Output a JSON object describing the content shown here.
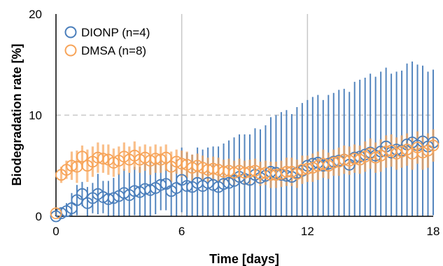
{
  "chart_data": {
    "type": "scatter",
    "xlabel": "Time [days]",
    "ylabel": "Biodegradation rate [%]",
    "xlim": [
      0,
      18
    ],
    "ylim": [
      0,
      20
    ],
    "xticks": [
      "0",
      "6",
      "12",
      "18"
    ],
    "yticks": [
      "0",
      "10",
      "20"
    ],
    "grid": {
      "vertical_solid_at": [
        6,
        12
      ],
      "horizontal_dashed_at": [
        10
      ]
    },
    "legend_position": "top-left",
    "marker": "open-circle",
    "error_bars": "vertical",
    "series": [
      {
        "name": "DIONP (n=4)",
        "color": "#4a7ebb",
        "x": [
          0,
          0.25,
          0.5,
          0.75,
          1.0,
          1.25,
          1.5,
          1.75,
          2.0,
          2.25,
          2.5,
          2.75,
          3.0,
          3.25,
          3.5,
          3.75,
          4.0,
          4.25,
          4.5,
          4.75,
          5.0,
          5.25,
          5.5,
          5.75,
          6.0,
          6.25,
          6.5,
          6.75,
          7.0,
          7.25,
          7.5,
          7.75,
          8.0,
          8.25,
          8.5,
          8.75,
          9.0,
          9.25,
          9.5,
          9.75,
          10.0,
          10.25,
          10.5,
          10.75,
          11.0,
          11.25,
          11.5,
          11.75,
          12.0,
          12.25,
          12.5,
          12.75,
          13.0,
          13.25,
          13.5,
          13.75,
          14.0,
          14.25,
          14.5,
          14.75,
          15.0,
          15.25,
          15.5,
          15.75,
          16.0,
          16.25,
          16.5,
          16.75,
          17.0,
          17.25,
          17.5,
          17.75,
          18.0
        ],
        "y": [
          0.0,
          0.3,
          0.5,
          0.8,
          1.6,
          2.2,
          1.3,
          1.8,
          2.2,
          1.9,
          1.7,
          1.8,
          2.0,
          2.3,
          2.1,
          2.5,
          2.4,
          2.7,
          2.6,
          2.8,
          3.1,
          3.2,
          2.5,
          2.8,
          3.6,
          3.0,
          2.9,
          3.3,
          3.0,
          3.3,
          3.1,
          2.9,
          3.2,
          3.3,
          3.5,
          3.9,
          3.7,
          3.6,
          4.1,
          3.8,
          4.0,
          4.4,
          4.3,
          4.1,
          4.0,
          3.9,
          4.3,
          4.5,
          5.0,
          5.2,
          5.3,
          5.0,
          5.2,
          5.4,
          5.5,
          5.6,
          5.1,
          5.8,
          5.9,
          6.1,
          6.3,
          6.0,
          6.4,
          6.9,
          6.3,
          6.6,
          6.5,
          7.1,
          7.3,
          7.0,
          7.4,
          6.9,
          7.3
        ],
        "err": [
          0.1,
          0.6,
          0.8,
          1.5,
          1.5,
          1.2,
          1.6,
          1.5,
          2.0,
          1.6,
          1.8,
          2.0,
          2.2,
          2.4,
          2.2,
          2.4,
          2.5,
          2.7,
          2.8,
          2.6,
          2.5,
          2.6,
          3.0,
          2.8,
          3.2,
          3.3,
          3.2,
          3.5,
          3.6,
          3.5,
          3.8,
          4.0,
          4.0,
          4.2,
          4.3,
          4.2,
          4.4,
          4.5,
          4.6,
          4.8,
          5.0,
          5.4,
          5.7,
          6.2,
          6.5,
          6.2,
          6.5,
          6.7,
          6.5,
          6.6,
          6.7,
          6.5,
          6.8,
          6.8,
          7.0,
          7.0,
          7.2,
          7.5,
          7.6,
          7.6,
          7.8,
          7.8,
          7.9,
          7.8,
          7.8,
          7.7,
          7.9,
          8.0,
          8.0,
          8.0,
          7.5,
          7.4,
          7.2
        ]
      },
      {
        "name": "DMSA (n=8)",
        "color": "#f7a459",
        "x": [
          0,
          0.25,
          0.5,
          0.75,
          1.0,
          1.25,
          1.5,
          1.75,
          2.0,
          2.25,
          2.5,
          2.75,
          3.0,
          3.25,
          3.5,
          3.75,
          4.0,
          4.25,
          4.5,
          4.75,
          5.0,
          5.25,
          5.5,
          5.75,
          6.0,
          6.25,
          6.5,
          6.75,
          7.0,
          7.25,
          7.5,
          7.75,
          8.0,
          8.25,
          8.5,
          8.75,
          9.0,
          9.25,
          9.5,
          9.75,
          10.0,
          10.25,
          10.5,
          10.75,
          11.0,
          11.25,
          11.5,
          11.75,
          12.0,
          12.25,
          12.5,
          12.75,
          13.0,
          13.25,
          13.5,
          13.75,
          14.0,
          14.25,
          14.5,
          14.75,
          15.0,
          15.25,
          15.5,
          15.75,
          16.0,
          16.25,
          16.5,
          16.75,
          17.0,
          17.25,
          17.5,
          17.75,
          18.0
        ],
        "y": [
          0.3,
          4.1,
          4.6,
          5.0,
          4.9,
          5.9,
          5.0,
          5.4,
          5.8,
          5.7,
          5.6,
          5.3,
          5.5,
          5.9,
          5.6,
          6.0,
          5.6,
          5.8,
          5.5,
          5.7,
          5.6,
          5.8,
          4.9,
          5.4,
          5.2,
          5.1,
          4.8,
          5.0,
          4.8,
          4.6,
          4.7,
          4.6,
          4.4,
          4.5,
          4.3,
          4.5,
          4.3,
          4.4,
          4.5,
          4.2,
          4.3,
          4.1,
          4.1,
          4.2,
          4.4,
          4.4,
          4.2,
          4.6,
          4.7,
          4.8,
          5.0,
          5.2,
          5.0,
          5.3,
          5.4,
          5.6,
          5.5,
          5.7,
          5.6,
          5.9,
          6.2,
          5.8,
          6.0,
          6.4,
          6.5,
          6.2,
          6.4,
          6.6,
          6.2,
          6.8,
          6.3,
          6.5,
          7.0
        ],
        "err": [
          0.4,
          0.8,
          0.9,
          1.4,
          1.6,
          1.1,
          1.6,
          1.5,
          1.5,
          1.4,
          1.5,
          1.4,
          1.4,
          1.4,
          1.3,
          1.4,
          1.3,
          1.3,
          1.4,
          1.4,
          1.3,
          1.3,
          1.5,
          1.2,
          1.3,
          1.3,
          1.3,
          1.2,
          1.2,
          1.2,
          1.2,
          1.2,
          1.2,
          1.2,
          1.2,
          1.2,
          1.2,
          1.2,
          1.2,
          1.2,
          1.2,
          1.3,
          1.3,
          1.3,
          1.4,
          1.4,
          1.4,
          1.4,
          1.3,
          1.4,
          1.4,
          1.4,
          1.3,
          1.3,
          1.4,
          1.4,
          1.4,
          1.4,
          1.4,
          1.5,
          1.5,
          1.5,
          1.6,
          1.6,
          1.6,
          1.6,
          1.6,
          1.6,
          1.6,
          1.6,
          1.7,
          1.7,
          1.6
        ]
      }
    ]
  }
}
